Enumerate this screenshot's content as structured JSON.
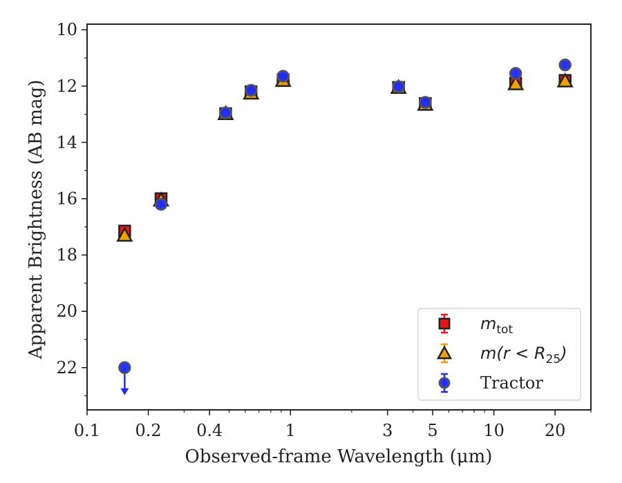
{
  "chart_data": {
    "type": "scatter",
    "xlabel": "Observed-frame Wavelength (μm)",
    "ylabel": "Apparent Brightness (AB mag)",
    "x_scale": "log",
    "xlim": [
      0.1,
      30
    ],
    "ylim": [
      23.5,
      9.8
    ],
    "y_inverted": true,
    "x_ticks": [
      0.1,
      0.2,
      0.4,
      1,
      3,
      5,
      10,
      20
    ],
    "x_tick_labels": [
      "0.1",
      "0.2",
      "0.4",
      "1",
      "3",
      "5",
      "10",
      "20"
    ],
    "y_ticks": [
      10,
      12,
      14,
      16,
      18,
      20,
      22
    ],
    "y_tick_labels": [
      "10",
      "12",
      "14",
      "16",
      "18",
      "20",
      "22"
    ],
    "legend_position": "lower-right",
    "series": [
      {
        "name": "m_tot",
        "label_base": "m",
        "label_sub": "tot",
        "marker": "square",
        "color": "#e8141c",
        "points": [
          {
            "x": 0.153,
            "y": 17.15,
            "yerr": 0.05
          },
          {
            "x": 0.231,
            "y": 16.0,
            "yerr": 0.05
          },
          {
            "x": 0.48,
            "y": 12.98,
            "yerr": 0.04
          },
          {
            "x": 0.64,
            "y": 12.2,
            "yerr": 0.04
          },
          {
            "x": 0.92,
            "y": 11.78,
            "yerr": 0.04
          },
          {
            "x": 3.4,
            "y": 12.05,
            "yerr": 0.04
          },
          {
            "x": 4.6,
            "y": 12.62,
            "yerr": 0.04
          },
          {
            "x": 12.8,
            "y": 11.9,
            "yerr": 0.05
          },
          {
            "x": 22.4,
            "y": 11.8,
            "yerr": 0.05
          }
        ]
      },
      {
        "name": "m(r < R25)",
        "label_base": "m(r < R",
        "label_sub": "25",
        "label_tail": ")",
        "marker": "triangle",
        "color": "#f0a000",
        "points": [
          {
            "x": 0.153,
            "y": 17.3,
            "yerr": 0.05
          },
          {
            "x": 0.231,
            "y": 16.05,
            "yerr": 0.05
          },
          {
            "x": 0.48,
            "y": 12.98,
            "yerr": 0.04
          },
          {
            "x": 0.64,
            "y": 12.25,
            "yerr": 0.04
          },
          {
            "x": 0.92,
            "y": 11.8,
            "yerr": 0.04
          },
          {
            "x": 3.4,
            "y": 12.05,
            "yerr": 0.04
          },
          {
            "x": 4.6,
            "y": 12.65,
            "yerr": 0.04
          },
          {
            "x": 12.8,
            "y": 11.92,
            "yerr": 0.05
          },
          {
            "x": 22.4,
            "y": 11.82,
            "yerr": 0.05
          }
        ]
      },
      {
        "name": "Tractor",
        "marker": "circle",
        "color": "#1f2bff",
        "points": [
          {
            "x": 0.153,
            "y": 22.0,
            "upper_limit": true
          },
          {
            "x": 0.231,
            "y": 16.2,
            "yerr": 0.05
          },
          {
            "x": 0.48,
            "y": 12.95,
            "yerr": 0.04
          },
          {
            "x": 0.64,
            "y": 12.15,
            "yerr": 0.04
          },
          {
            "x": 0.92,
            "y": 11.65,
            "yerr": 0.04
          },
          {
            "x": 3.4,
            "y": 12.02,
            "yerr": 0.04
          },
          {
            "x": 4.6,
            "y": 12.58,
            "yerr": 0.04
          },
          {
            "x": 12.8,
            "y": 11.55,
            "yerr": 0.05
          },
          {
            "x": 22.4,
            "y": 11.25,
            "yerr": 0.05
          }
        ]
      }
    ]
  }
}
